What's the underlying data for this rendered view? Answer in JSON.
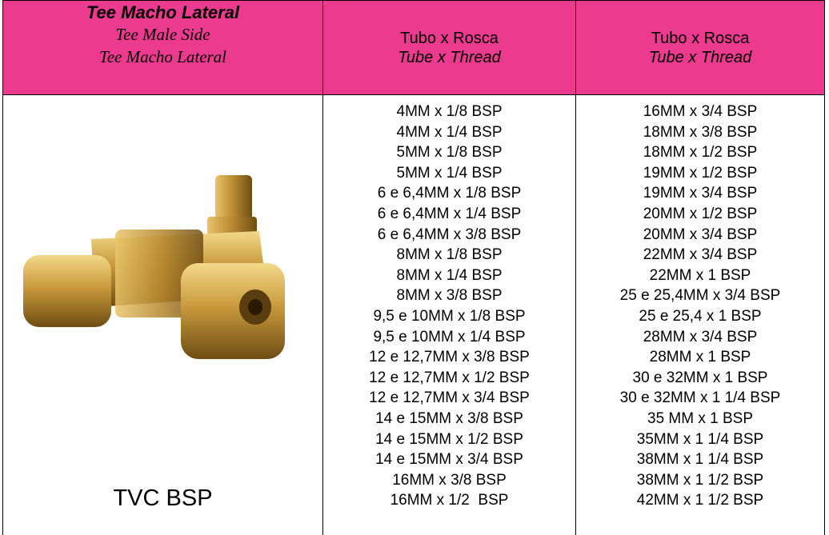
{
  "header": {
    "title": "Tee Macho Lateral",
    "subtitle_1": "Tee Male Side",
    "subtitle_2": "Tee Macho Lateral",
    "columns": [
      {
        "line_1": "Tubo x Rosca",
        "line_2": "Tube x Thread"
      },
      {
        "line_1": "Tubo x Rosca",
        "line_2": "Tube x Thread"
      }
    ]
  },
  "body": {
    "product_label": "TVC BSP",
    "column_1": [
      "4MM x 1/8 BSP",
      "4MM x 1/4 BSP",
      "5MM x 1/8 BSP",
      "5MM x 1/4 BSP",
      "6 e 6,4MM x 1/8 BSP",
      "6 e 6,4MM x 1/4 BSP",
      "6 e 6,4MM x 3/8 BSP",
      "8MM x 1/8 BSP",
      "8MM x 1/4 BSP",
      "8MM x 3/8 BSP",
      "9,5 e 10MM x 1/8 BSP",
      "9,5 e 10MM x 1/4 BSP",
      "12 e 12,7MM x 3/8 BSP",
      "12 e 12,7MM x 1/2 BSP",
      "12 e 12,7MM x 3/4 BSP",
      "14 e 15MM x 3/8 BSP",
      "14 e 15MM x 1/2 BSP",
      "14 e 15MM x 3/4 BSP",
      "16MM x 3/8 BSP",
      "16MM x 1/2  BSP"
    ],
    "column_2": [
      "16MM x 3/4 BSP",
      "18MM x 3/8 BSP",
      "18MM x 1/2 BSP",
      "19MM x 1/2 BSP",
      "19MM x 3/4 BSP",
      "20MM x 1/2 BSP",
      "20MM x 3/4 BSP",
      "22MM x 3/4 BSP",
      "22MM x 1 BSP",
      "25 e 25,4MM x 3/4 BSP",
      "25 e 25,4 x 1 BSP",
      "28MM x 3/4 BSP",
      "28MM x 1 BSP",
      "30 e 32MM x 1 BSP",
      "30 e 32MM x 1 1/4 BSP",
      "35 MM x 1 BSP",
      "35MM x 1 1/4 BSP",
      "38MM x 1 1/4 BSP",
      "38MM x 1 1/2 BSP",
      "42MM x 1 1/2 BSP"
    ]
  }
}
